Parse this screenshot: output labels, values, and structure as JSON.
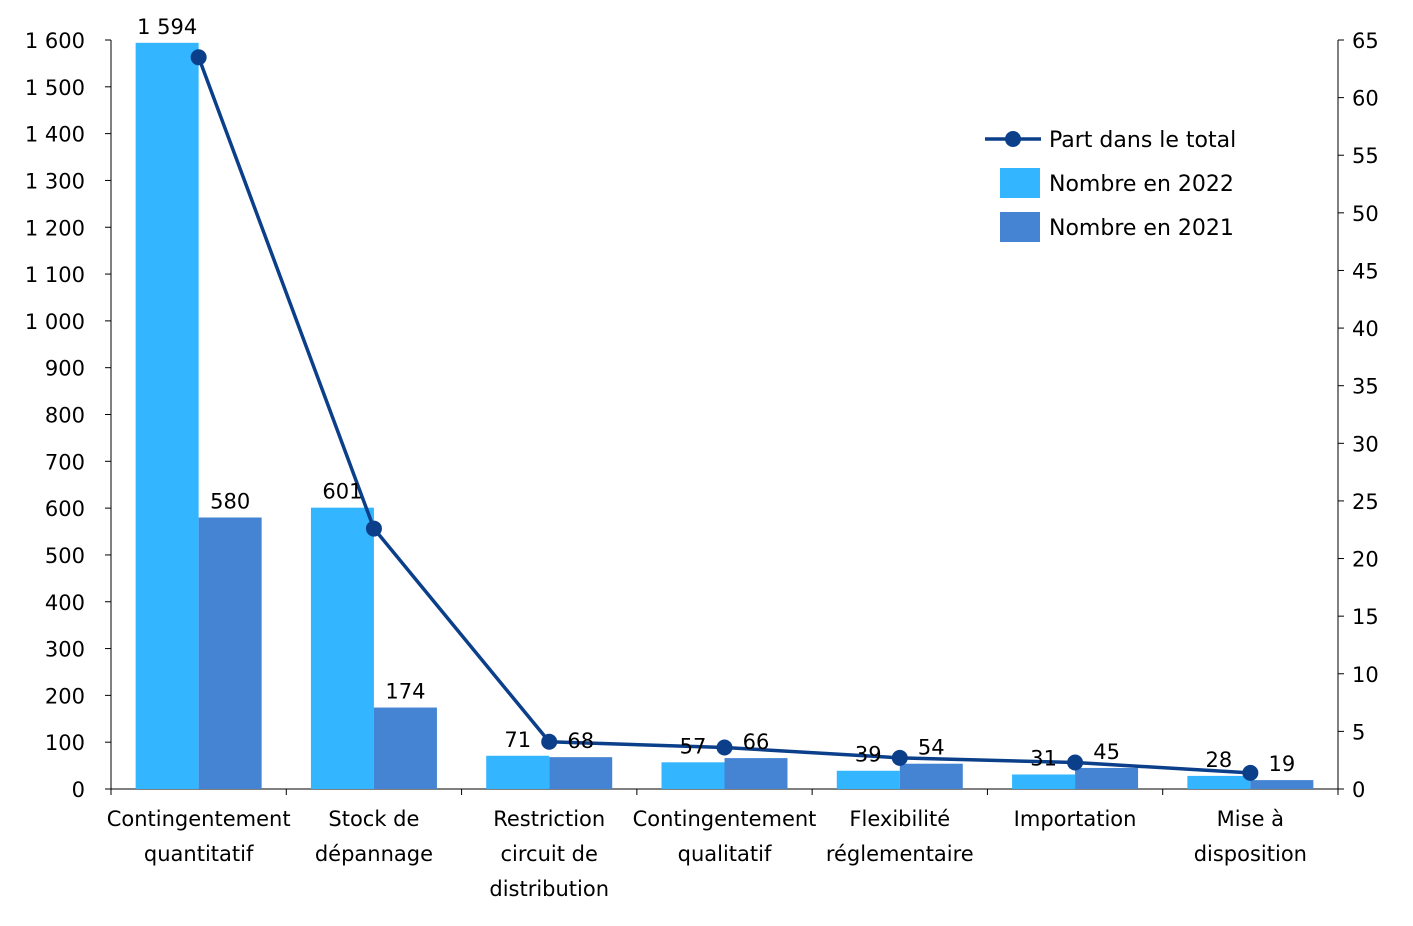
{
  "chart_data": {
    "type": "bar",
    "categories": [
      [
        "Contingentement",
        "quantitatif"
      ],
      [
        "Stock de",
        "dépannage"
      ],
      [
        "Restriction",
        "circuit de",
        "distribution"
      ],
      [
        "Contingentement",
        "qualitatif"
      ],
      [
        "Flexibilité",
        "réglementaire"
      ],
      [
        "Importation"
      ],
      [
        "Mise à",
        "disposition"
      ]
    ],
    "series": [
      {
        "name": "Nombre en 2022",
        "type": "bar",
        "axis": "left",
        "color": "#33B5FF",
        "values": [
          1594,
          601,
          71,
          57,
          39,
          31,
          28
        ],
        "labels": [
          "1 594",
          "601",
          "71",
          "57",
          "39",
          "31",
          "28"
        ]
      },
      {
        "name": "Nombre en 2021",
        "type": "bar",
        "axis": "left",
        "color": "#4584D3",
        "values": [
          580,
          174,
          68,
          66,
          54,
          45,
          19
        ],
        "labels": [
          "580",
          "174",
          "68",
          "66",
          "54",
          "45",
          "19"
        ]
      },
      {
        "name": "Part dans le total",
        "type": "line",
        "axis": "right",
        "color": "#0B3F8A",
        "values": [
          63.5,
          22.6,
          4.1,
          3.6,
          2.7,
          2.3,
          1.4
        ]
      }
    ],
    "y_left": {
      "lim": [
        0,
        1600
      ],
      "ticks": [
        "0",
        "100",
        "200",
        "300",
        "400",
        "500",
        "600",
        "700",
        "800",
        "900",
        "1 000",
        "1 100",
        "1 200",
        "1 300",
        "1 400",
        "1 500",
        "1 600"
      ]
    },
    "y_right": {
      "lim": [
        0,
        65
      ],
      "ticks": [
        "0",
        "5",
        "10",
        "15",
        "20",
        "25",
        "30",
        "35",
        "40",
        "45",
        "50",
        "55",
        "60",
        "65"
      ]
    },
    "legend": {
      "position": "top-right",
      "order": [
        "Part dans le total",
        "Nombre en 2022",
        "Nombre en 2021"
      ]
    },
    "grid": false
  }
}
